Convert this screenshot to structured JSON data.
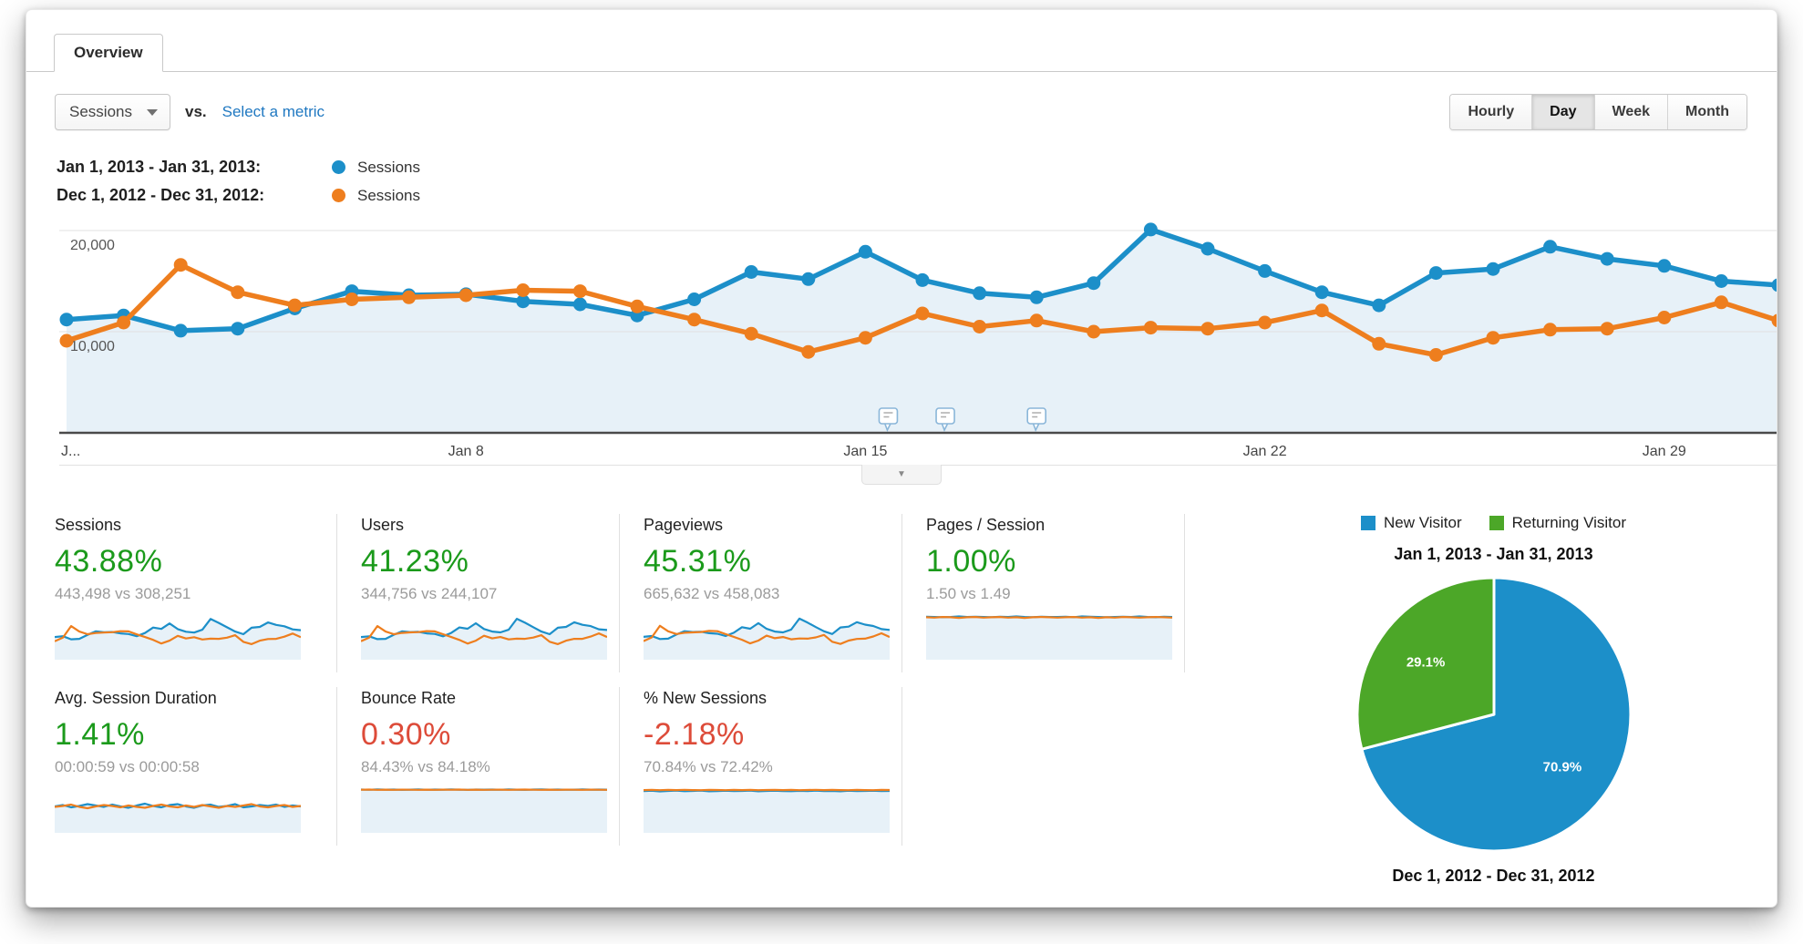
{
  "tab_label": "Overview",
  "toolbar": {
    "metric_selector": "Sessions",
    "vs_label": "vs.",
    "select_metric_link": "Select a metric",
    "granularity": [
      "Hourly",
      "Day",
      "Week",
      "Month"
    ],
    "granularity_active": "Day"
  },
  "legend": [
    {
      "date_range": "Jan 1, 2013 - Jan 31, 2013:",
      "series": "Sessions",
      "color": "#1c8fc9"
    },
    {
      "date_range": "Dec 1, 2012 - Dec 31, 2012:",
      "series": "Sessions",
      "color": "#ee7e1e"
    }
  ],
  "annotations_expander_icon": "▼",
  "colors": {
    "positive": "#1b9a1b",
    "negative": "#dd4b39",
    "area_fill": "#e7f1f8",
    "grid": "#e0e0e0",
    "axis": "#4a4a4a",
    "axis_label": "#555555",
    "annotation_stroke": "#8ab6d9"
  },
  "chart_data": [
    {
      "type": "line",
      "title": "Sessions by day, Jan 1 2013 - Jan 31 2013 vs Dec 1 2012 - Dec 31 2012",
      "x": [
        1,
        2,
        3,
        4,
        5,
        6,
        7,
        8,
        9,
        10,
        11,
        12,
        13,
        14,
        15,
        16,
        17,
        18,
        19,
        20,
        21,
        22,
        23,
        24,
        25,
        26,
        27,
        28,
        29,
        30,
        31
      ],
      "series": [
        {
          "name": "Jan 1, 2013 - Jan 31, 2013 Sessions",
          "color": "#1c8fc9",
          "area_fill": true,
          "values": [
            11200,
            11600,
            10100,
            10300,
            12300,
            14000,
            13600,
            13700,
            13000,
            12700,
            11600,
            13200,
            15900,
            15200,
            17900,
            15100,
            13800,
            13400,
            14800,
            20100,
            18200,
            16000,
            13900,
            12600,
            15800,
            16200,
            18400,
            17200,
            16500,
            15000,
            14600
          ]
        },
        {
          "name": "Dec 1, 2012 - Dec 31, 2012 Sessions",
          "color": "#ee7e1e",
          "area_fill": false,
          "values": [
            9100,
            10900,
            16600,
            13900,
            12600,
            13200,
            13400,
            13600,
            14100,
            14000,
            12500,
            11200,
            9800,
            8000,
            9400,
            11800,
            10500,
            11100,
            10000,
            10400,
            10300,
            10900,
            12100,
            8800,
            7700,
            9400,
            10200,
            10300,
            11400,
            12900,
            11100
          ]
        }
      ],
      "ylim": [
        0,
        21000
      ],
      "yticks": [
        {
          "value": 20000,
          "label": "20,000"
        },
        {
          "value": 10000,
          "label": "10,000"
        }
      ],
      "xticks": [
        {
          "day": 1,
          "label": "J..."
        },
        {
          "day": 8,
          "label": "Jan 8"
        },
        {
          "day": 15,
          "label": "Jan 15"
        },
        {
          "day": 22,
          "label": "Jan 22"
        },
        {
          "day": 29,
          "label": "Jan 29"
        }
      ],
      "grid": true,
      "legend_position": "top-left",
      "annotation_marker_days": [
        15.4,
        16.4,
        18
      ]
    },
    {
      "type": "pie",
      "title": "Jan 1, 2013 - Jan 31, 2013",
      "bottom_title": "Dec 1, 2012 - Dec 31, 2012",
      "legend": [
        {
          "label": "New Visitor",
          "color": "#1c8fc9"
        },
        {
          "label": "Returning Visitor",
          "color": "#4ca728"
        }
      ],
      "slices": [
        {
          "label": "New Visitor",
          "value": 70.9,
          "display": "70.9%",
          "color": "#1c8fc9"
        },
        {
          "label": "Returning Visitor",
          "value": 29.1,
          "display": "29.1%",
          "color": "#4ca728"
        }
      ],
      "start": "top",
      "direction": "clockwise"
    }
  ],
  "cards": [
    {
      "title": "Sessions",
      "delta": "43.88%",
      "direction": "up",
      "comparison": "443,498 vs 308,251",
      "spark": {
        "max": 22500,
        "blue": [
          11200,
          11600,
          10100,
          10300,
          12300,
          14000,
          13600,
          13700,
          13000,
          12700,
          11600,
          13200,
          15900,
          15200,
          17900,
          15100,
          13800,
          13400,
          14800,
          20100,
          18200,
          16000,
          13900,
          12600,
          15800,
          16200,
          18400,
          17200,
          16500,
          15000,
          14600
        ],
        "orange": [
          9100,
          10900,
          16600,
          13900,
          12600,
          13200,
          13400,
          13600,
          14100,
          14000,
          12500,
          11200,
          9800,
          8000,
          9400,
          11800,
          10500,
          11100,
          10000,
          10400,
          10300,
          10900,
          12100,
          8800,
          7700,
          9400,
          10200,
          10300,
          11400,
          12900,
          11100
        ]
      }
    },
    {
      "title": "Users",
      "delta": "41.23%",
      "direction": "up",
      "comparison": "344,756 vs 244,107",
      "spark": {
        "max": 17500,
        "blue": [
          8700,
          9000,
          7900,
          8000,
          9600,
          10900,
          10600,
          10700,
          10100,
          9900,
          9000,
          10300,
          12400,
          11900,
          14000,
          11800,
          10800,
          10500,
          11500,
          15700,
          14200,
          12500,
          10800,
          9800,
          12300,
          12600,
          14400,
          13400,
          12900,
          11700,
          11400
        ],
        "orange": [
          7100,
          8500,
          12900,
          10800,
          9800,
          10300,
          10500,
          10600,
          11000,
          10900,
          9800,
          8700,
          7600,
          6200,
          7300,
          9200,
          8200,
          8700,
          7800,
          8100,
          8000,
          8500,
          9400,
          6900,
          6000,
          7300,
          8000,
          8000,
          8900,
          10100,
          8700
        ]
      }
    },
    {
      "title": "Pageviews",
      "delta": "45.31%",
      "direction": "up",
      "comparison": "665,632 vs 458,083",
      "spark": {
        "max": 33500,
        "blue": [
          16800,
          17400,
          15200,
          15500,
          18500,
          21000,
          20400,
          20600,
          19500,
          19100,
          17400,
          19800,
          23900,
          22800,
          26900,
          22700,
          20700,
          20100,
          22200,
          30200,
          27300,
          24000,
          20900,
          18900,
          23700,
          24300,
          27600,
          25800,
          24800,
          22500,
          21900
        ],
        "orange": [
          13700,
          16400,
          24900,
          20900,
          18900,
          19800,
          20100,
          20400,
          21200,
          21000,
          18800,
          16800,
          14700,
          12000,
          14100,
          17700,
          15800,
          16700,
          15000,
          15600,
          15500,
          16400,
          18200,
          13200,
          11600,
          14100,
          15300,
          15500,
          17100,
          19400,
          16700
        ]
      }
    },
    {
      "title": "Pages / Session",
      "delta": "1.00%",
      "direction": "up",
      "comparison": "1.50 vs 1.49",
      "spark": {
        "max": 1.6,
        "blue": [
          1.51,
          1.5,
          1.49,
          1.5,
          1.52,
          1.5,
          1.51,
          1.5,
          1.49,
          1.51,
          1.5,
          1.52,
          1.5,
          1.49,
          1.51,
          1.5,
          1.5,
          1.51,
          1.49,
          1.52,
          1.51,
          1.5,
          1.49,
          1.5,
          1.51,
          1.5,
          1.52,
          1.5,
          1.49,
          1.51,
          1.5
        ],
        "orange": [
          1.49,
          1.48,
          1.5,
          1.49,
          1.47,
          1.49,
          1.5,
          1.48,
          1.49,
          1.5,
          1.48,
          1.49,
          1.47,
          1.49,
          1.5,
          1.49,
          1.48,
          1.49,
          1.5,
          1.48,
          1.49,
          1.47,
          1.49,
          1.48,
          1.5,
          1.49,
          1.48,
          1.49,
          1.5,
          1.49,
          1.48
        ]
      }
    },
    {
      "title": "Avg. Session Duration",
      "delta": "1.41%",
      "direction": "up",
      "comparison": "00:00:59 vs 00:00:58",
      "spark": {
        "max": 100,
        "blue": [
          58,
          61,
          56,
          59,
          63,
          60,
          57,
          62,
          58,
          55,
          60,
          64,
          59,
          56,
          61,
          63,
          58,
          55,
          60,
          62,
          57,
          59,
          63,
          56,
          58,
          61,
          59,
          62,
          57,
          60,
          58
        ],
        "orange": [
          57,
          59,
          62,
          57,
          54,
          58,
          61,
          59,
          56,
          60,
          57,
          55,
          59,
          62,
          58,
          56,
          60,
          57,
          61,
          58,
          55,
          59,
          57,
          60,
          63,
          58,
          56,
          59,
          61,
          57,
          59
        ]
      }
    },
    {
      "title": "Bounce Rate",
      "delta": "0.30%",
      "direction": "down",
      "comparison": "84.43% vs 84.18%",
      "spark": {
        "max": 89,
        "blue": [
          84.5,
          84.2,
          84.8,
          84.3,
          84.6,
          84.1,
          84.4,
          84.7,
          84.2,
          84.5,
          84.3,
          84.8,
          84.4,
          84.1,
          84.6,
          84.3,
          84.5,
          84.2,
          84.7,
          84.4,
          84.1,
          84.5,
          84.8,
          84.3,
          84.6,
          84.2,
          84.4,
          84.7,
          84.3,
          84.5,
          84.4
        ],
        "orange": [
          84.2,
          84.5,
          84.0,
          84.3,
          84.1,
          84.4,
          84.2,
          84.0,
          84.3,
          84.1,
          84.4,
          84.2,
          84.5,
          84.1,
          84.3,
          84.0,
          84.2,
          84.4,
          84.1,
          84.3,
          84.5,
          84.2,
          84.0,
          84.3,
          84.1,
          84.4,
          84.2,
          84.0,
          84.3,
          84.2,
          84.1
        ]
      }
    },
    {
      "title": "% New Sessions",
      "delta": "-2.18%",
      "direction": "down",
      "comparison": "70.84% vs 72.42%",
      "spark": {
        "max": 77,
        "blue": [
          70.5,
          71.2,
          70.1,
          70.9,
          71.5,
          70.4,
          70.8,
          71.3,
          70.2,
          70.7,
          71.1,
          70.5,
          70.9,
          71.4,
          70.3,
          70.8,
          71.2,
          70.6,
          70.4,
          71.0,
          70.7,
          71.3,
          70.5,
          70.9,
          70.3,
          71.1,
          70.6,
          70.8,
          71.2,
          70.5,
          70.8
        ],
        "orange": [
          72.3,
          72.6,
          72.1,
          72.5,
          72.2,
          72.7,
          72.3,
          72.0,
          72.5,
          72.4,
          72.1,
          72.6,
          72.3,
          72.5,
          72.0,
          72.4,
          72.6,
          72.2,
          72.5,
          72.1,
          72.4,
          72.7,
          72.2,
          72.5,
          72.3,
          72.0,
          72.6,
          72.3,
          72.1,
          72.5,
          72.4
        ]
      }
    }
  ]
}
